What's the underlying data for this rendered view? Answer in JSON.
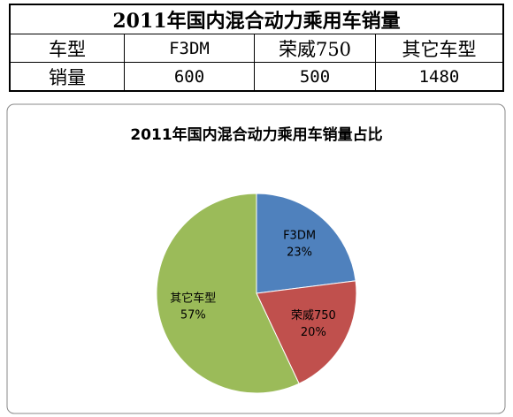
{
  "table": {
    "title": "2011年国内混合动力乘用车销量",
    "rows": [
      [
        "车型",
        "F3DM",
        "荣威750",
        "其它车型"
      ],
      [
        "销量",
        600,
        500,
        1480
      ]
    ]
  },
  "chart_data": {
    "type": "pie",
    "title": "2011年国内混合动力乘用车销量占比",
    "categories": [
      "F3DM",
      "荣威750",
      "其它车型"
    ],
    "values": [
      23,
      20,
      57
    ],
    "value_labels": [
      "23%",
      "20%",
      "57%"
    ],
    "colors": [
      "#4f81bd",
      "#c0504d",
      "#9bbb59"
    ]
  }
}
